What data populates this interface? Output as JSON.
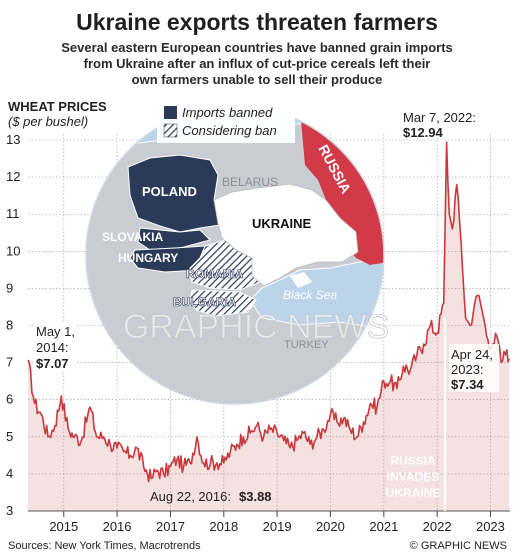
{
  "header": {
    "title": "Ukraine exports threaten farmers",
    "subtitle_lines": [
      "Several eastern European countries have banned grain imports",
      "from Ukraine after an influx of cut-price cereals left their",
      "own farmers unable to sell their produce"
    ]
  },
  "chart_data": {
    "type": "line",
    "title": "WHEAT PRICES",
    "ylabel": "($ per bushel)",
    "xlabel": "",
    "ylim": [
      3,
      13
    ],
    "yticks": [
      "3",
      "4",
      "5",
      "6",
      "7",
      "8",
      "9",
      "10",
      "11",
      "12",
      "13"
    ],
    "xlim": [
      "2014-05-01",
      "2023-05-15"
    ],
    "xticks": [
      {
        "date": "2015-01-01",
        "label": "2015"
      },
      {
        "date": "2016-01-01",
        "label": "2016"
      },
      {
        "date": "2017-01-01",
        "label": "2017"
      },
      {
        "date": "2018-01-01",
        "label": "2018"
      },
      {
        "date": "2019-01-01",
        "label": "2019"
      },
      {
        "date": "2020-01-01",
        "label": "2020"
      },
      {
        "date": "2021-01-01",
        "label": "2021"
      },
      {
        "date": "2022-01-01",
        "label": "2022"
      },
      {
        "date": "2023-01-01",
        "label": "2023"
      }
    ],
    "grid": true,
    "colors": {
      "line": "#c8393c",
      "fill": "#f4e1e0",
      "grid": "#9a9a9a"
    },
    "series": [
      {
        "x": [
          "2014-05-01",
          "2014-06-15",
          "2014-08-01",
          "2014-09-15",
          "2014-11-01",
          "2014-12-15",
          "2015-02-01",
          "2015-03-15",
          "2015-05-01",
          "2015-06-15",
          "2015-07-01",
          "2015-08-15",
          "2015-10-01",
          "2015-11-15",
          "2016-01-01",
          "2016-02-15",
          "2016-04-01",
          "2016-05-15",
          "2016-07-01",
          "2016-08-22",
          "2016-10-01",
          "2016-11-15",
          "2017-01-01",
          "2017-02-15",
          "2017-04-01",
          "2017-05-15",
          "2017-07-01",
          "2017-08-15",
          "2017-10-01",
          "2017-11-15",
          "2018-01-01",
          "2018-02-15",
          "2018-04-01",
          "2018-05-15",
          "2018-07-01",
          "2018-08-15",
          "2018-10-01",
          "2018-11-15",
          "2019-01-01",
          "2019-02-15",
          "2019-04-01",
          "2019-05-15",
          "2019-07-01",
          "2019-08-15",
          "2019-10-01",
          "2019-11-15",
          "2020-01-01",
          "2020-02-15",
          "2020-04-01",
          "2020-05-15",
          "2020-07-01",
          "2020-08-15",
          "2020-10-01",
          "2020-11-15",
          "2021-01-01",
          "2021-02-15",
          "2021-04-01",
          "2021-05-15",
          "2021-07-01",
          "2021-08-15",
          "2021-10-01",
          "2021-11-15",
          "2022-01-01",
          "2022-02-15",
          "2022-03-07",
          "2022-03-25",
          "2022-04-15",
          "2022-05-15",
          "2022-06-15",
          "2022-07-15",
          "2022-08-15",
          "2022-09-15",
          "2022-10-15",
          "2022-11-15",
          "2022-12-15",
          "2023-01-15",
          "2023-02-15",
          "2023-03-15",
          "2023-04-24",
          "2023-05-10"
        ],
        "y": [
          7.07,
          5.9,
          5.6,
          5.0,
          5.3,
          6.1,
          5.2,
          5.0,
          4.9,
          5.6,
          5.8,
          5.0,
          5.0,
          4.8,
          4.7,
          4.6,
          4.5,
          4.7,
          4.2,
          3.88,
          4.1,
          4.0,
          4.2,
          4.4,
          4.2,
          4.3,
          5.0,
          4.3,
          4.3,
          4.3,
          4.3,
          4.6,
          4.8,
          5.0,
          5.1,
          5.3,
          5.0,
          5.2,
          5.1,
          4.9,
          4.7,
          4.9,
          5.1,
          4.8,
          5.0,
          5.2,
          5.6,
          5.4,
          5.5,
          5.2,
          5.0,
          5.4,
          5.9,
          5.8,
          6.5,
          6.5,
          6.3,
          6.9,
          6.8,
          7.2,
          7.5,
          8.0,
          7.8,
          8.6,
          12.94,
          11.0,
          10.6,
          11.8,
          10.2,
          8.2,
          8.0,
          8.6,
          8.8,
          8.2,
          7.6,
          7.5,
          7.7,
          7.0,
          7.34,
          7.1
        ]
      }
    ],
    "annotations": [
      {
        "date": "2014-05-01",
        "value": 7.07,
        "lines": [
          "May 1,",
          "2014:"
        ],
        "value_label": "$7.07"
      },
      {
        "date": "2016-08-22",
        "value": 3.88,
        "label": "Aug 22, 2016:",
        "value_label": "$3.88"
      },
      {
        "date": "2022-03-07",
        "value": 12.94,
        "label": "Mar 7, 2022:",
        "value_label": "$12.94"
      },
      {
        "date": "2023-04-24",
        "value": 7.34,
        "label": "Apr 24,",
        "label2": "2023:",
        "value_label": "$7.34"
      }
    ],
    "event": {
      "date": "2022-02-24",
      "lines": [
        "RUSSIA",
        "INVADES",
        "UKRAINE"
      ]
    }
  },
  "map": {
    "legend": {
      "banned": "Imports banned",
      "considering": "Considering ban"
    },
    "colors": {
      "banned": "#2c3a59",
      "russia": "#d23a48",
      "sea": "#bcd4ea",
      "land": "#c9ccd2",
      "ukraine": "#ffffff"
    },
    "countries": {
      "poland": "POLAND",
      "belarus": "BELARUS",
      "russia": "RUSSIA",
      "ukraine": "UKRAINE",
      "slovakia": "SLOVAKIA",
      "hungary": "HUNGARY",
      "romania": "ROMANIA",
      "bulgaria": "BULGARIA",
      "turkey": "TURKEY"
    },
    "sea_label": "Black Sea"
  },
  "watermark": "GRAPHIC NEWS",
  "footer": {
    "sources": "Sources: New York Times, Macrotrends",
    "credit": "© GRAPHIC NEWS"
  }
}
